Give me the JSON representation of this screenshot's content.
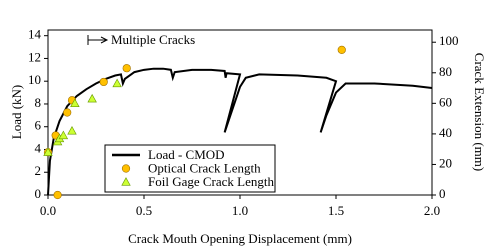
{
  "chart_data": {
    "type": "line",
    "x_label": "Crack Mouth Opening Displacement (mm)",
    "y_label": "Load (kN)",
    "y2_label": "Crack Extension (mm)",
    "annotation": "Multiple Cracks",
    "xlim": [
      0,
      2
    ],
    "xticks": [
      {
        "value": 0,
        "label": "0.0"
      },
      0.5,
      {
        "value": 1,
        "label": "1.0"
      },
      1.5,
      {
        "value": 2,
        "label": "2.0"
      }
    ],
    "ylim": [
      0,
      14.5
    ],
    "yticks": [
      0,
      2,
      4,
      6,
      8,
      10,
      12,
      14
    ],
    "y2lim": [
      0,
      108
    ],
    "y2ticks": [
      0,
      20,
      40,
      60,
      80,
      100
    ],
    "grid": false,
    "series": [
      {
        "name": "Load - CMOD",
        "color": "#000000",
        "marker": "line",
        "x": [
          0,
          0.01,
          0.03,
          0.06,
          0.1,
          0.15,
          0.2,
          0.25,
          0.3,
          0.35,
          0.38,
          0.39,
          0.4,
          0.45,
          0.5,
          0.55,
          0.6,
          0.64,
          0.65,
          0.66,
          0.75,
          0.85,
          0.92,
          0.925,
          0.93,
          1.0,
          0.92,
          0.95,
          1.0,
          1.03,
          1.1,
          1.3,
          1.45,
          1.5,
          1.42,
          1.45,
          1.5,
          1.55,
          1.7,
          1.9,
          2.0
        ],
        "values": [
          0,
          3,
          5,
          6.5,
          7.8,
          8.7,
          9.3,
          9.8,
          10.2,
          10.5,
          10.6,
          9.8,
          10.2,
          10.8,
          11.0,
          11.1,
          11.1,
          11.0,
          10.3,
          10.8,
          11.0,
          11.0,
          10.9,
          10.3,
          10.7,
          10.6,
          5.5,
          7,
          9.5,
          10.3,
          10.6,
          10.5,
          10.3,
          10.0,
          5.5,
          7,
          9.0,
          9.8,
          9.8,
          9.6,
          9.4
        ]
      },
      {
        "name": "Optical Crack Length",
        "color": "#ffc000",
        "marker": "circle",
        "axis": "y2",
        "x": [
          0.0,
          0.05,
          0.04,
          0.1,
          0.125,
          0.29,
          0.41,
          1.53
        ],
        "values": [
          28,
          0,
          39,
          54,
          62,
          74,
          83,
          95
        ]
      },
      {
        "name": "Foil Gage Crack Length",
        "color": "#ccff33",
        "marker": "triangle",
        "axis": "y2",
        "x": [
          0.0,
          0.05,
          0.06,
          0.08,
          0.125,
          0.14,
          0.23,
          0.36
        ],
        "values": [
          28,
          35,
          37,
          39,
          42,
          60,
          63,
          73
        ]
      }
    ]
  }
}
